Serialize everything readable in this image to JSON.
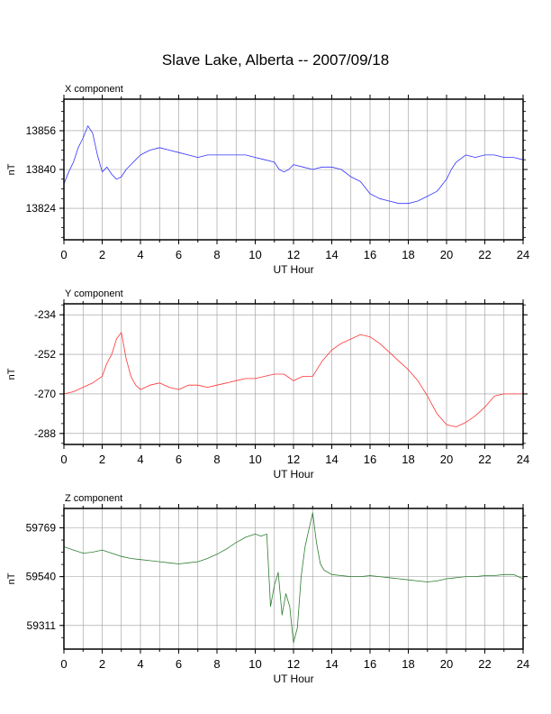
{
  "title": "Slave Lake, Alberta -- 2007/09/18",
  "colors": {
    "x": "#3333ff",
    "y": "#ff3333",
    "z": "#2e7d32",
    "grid": "#999999"
  },
  "chart_data": [
    {
      "type": "line",
      "title": "X component",
      "xlabel": "UT Hour",
      "ylabel": "nT",
      "xlim": [
        0,
        24
      ],
      "ylim": [
        13811,
        13869
      ],
      "xticks": [
        "0",
        "2",
        "4",
        "6",
        "8",
        "10",
        "12",
        "14",
        "16",
        "18",
        "20",
        "22",
        "24"
      ],
      "yticks": [
        "13856",
        "13840",
        "13824"
      ],
      "ytick_values": [
        13856,
        13840,
        13824
      ],
      "grid": true,
      "series": [
        {
          "x": [
            0,
            0.25,
            0.5,
            0.75,
            1,
            1.25,
            1.5,
            1.75,
            2,
            2.25,
            2.5,
            2.75,
            3,
            3.25,
            3.5,
            3.75,
            4,
            4.5,
            5,
            5.5,
            6,
            6.5,
            7,
            7.5,
            8,
            8.5,
            9,
            9.5,
            10,
            10.5,
            11,
            11.25,
            11.5,
            11.75,
            12,
            12.5,
            13,
            13.5,
            14,
            14.5,
            15,
            15.5,
            16,
            16.5,
            17,
            17.5,
            18,
            18.5,
            19,
            19.5,
            20,
            20.25,
            20.5,
            21,
            21.5,
            22,
            22.5,
            23,
            23.5,
            24
          ],
          "values": [
            13834,
            13839,
            13843,
            13849,
            13853,
            13858,
            13855,
            13846,
            13839,
            13841,
            13838,
            13836,
            13837,
            13840,
            13842,
            13844,
            13846,
            13848,
            13849,
            13848,
            13847,
            13846,
            13845,
            13846,
            13846,
            13846,
            13846,
            13846,
            13845,
            13844,
            13843,
            13840,
            13839,
            13840,
            13842,
            13841,
            13840,
            13841,
            13841,
            13840,
            13837,
            13835,
            13830,
            13828,
            13827,
            13826,
            13826,
            13827,
            13829,
            13831,
            13836,
            13840,
            13843,
            13846,
            13845,
            13846,
            13846,
            13845,
            13845,
            13844
          ]
        }
      ]
    },
    {
      "type": "line",
      "title": "Y component",
      "xlabel": "UT Hour",
      "ylabel": "nT",
      "xlim": [
        0,
        24
      ],
      "ylim": [
        -293,
        -229
      ],
      "xticks": [
        "0",
        "2",
        "4",
        "6",
        "8",
        "10",
        "12",
        "14",
        "16",
        "18",
        "20",
        "22",
        "24"
      ],
      "yticks": [
        "-234",
        "-252",
        "-270",
        "-288"
      ],
      "ytick_values": [
        -234,
        -252,
        -270,
        -288
      ],
      "grid": true,
      "series": [
        {
          "x": [
            0,
            0.5,
            1,
            1.5,
            2,
            2.25,
            2.5,
            2.75,
            3,
            3.25,
            3.5,
            3.75,
            4,
            4.5,
            5,
            5.5,
            6,
            6.5,
            7,
            7.5,
            8,
            8.5,
            9,
            9.5,
            10,
            10.5,
            11,
            11.5,
            12,
            12.5,
            13,
            13.5,
            14,
            14.5,
            15,
            15.5,
            16,
            16.5,
            17,
            17.5,
            18,
            18.5,
            19,
            19.5,
            20,
            20.5,
            21,
            21.5,
            22,
            22.5,
            23,
            23.5,
            24
          ],
          "values": [
            -270,
            -269,
            -267,
            -265,
            -262,
            -256,
            -252,
            -245,
            -242,
            -254,
            -262,
            -266,
            -268,
            -266,
            -265,
            -267,
            -268,
            -266,
            -266,
            -267,
            -266,
            -265,
            -264,
            -263,
            -263,
            -262,
            -261,
            -261,
            -264,
            -262,
            -262,
            -255,
            -250,
            -247,
            -245,
            -243,
            -244,
            -247,
            -251,
            -255,
            -259,
            -264,
            -271,
            -279,
            -284,
            -285,
            -283,
            -280,
            -276,
            -271,
            -270,
            -270,
            -270
          ]
        }
      ]
    },
    {
      "type": "line",
      "title": "Z component",
      "xlabel": "UT Hour",
      "ylabel": "nT",
      "xlim": [
        0,
        24
      ],
      "ylim": [
        59200,
        59860
      ],
      "xticks": [
        "0",
        "2",
        "4",
        "6",
        "8",
        "10",
        "12",
        "14",
        "16",
        "18",
        "20",
        "22",
        "24"
      ],
      "yticks": [
        "59769",
        "59540",
        "59311"
      ],
      "ytick_values": [
        59769,
        59540,
        59311
      ],
      "grid": true,
      "series": [
        {
          "x": [
            0,
            0.5,
            1,
            1.5,
            2,
            2.5,
            3,
            3.5,
            4,
            4.5,
            5,
            5.5,
            6,
            6.5,
            7,
            7.5,
            8,
            8.5,
            9,
            9.5,
            10,
            10.3,
            10.6,
            10.8,
            11,
            11.2,
            11.4,
            11.6,
            11.8,
            12,
            12.2,
            12.4,
            12.6,
            12.8,
            13,
            13.2,
            13.4,
            13.6,
            14,
            14.5,
            15,
            15.5,
            16,
            16.5,
            17,
            17.5,
            18,
            18.5,
            19,
            19.5,
            20,
            20.5,
            21,
            21.5,
            22,
            22.5,
            23,
            23.5,
            24
          ],
          "values": [
            59680,
            59665,
            59650,
            59655,
            59665,
            59650,
            59635,
            59625,
            59620,
            59615,
            59610,
            59605,
            59600,
            59605,
            59610,
            59625,
            59645,
            59670,
            59700,
            59725,
            59740,
            59730,
            59740,
            59400,
            59500,
            59560,
            59360,
            59460,
            59400,
            59230,
            59300,
            59540,
            59680,
            59760,
            59840,
            59700,
            59600,
            59570,
            59550,
            59545,
            59540,
            59540,
            59545,
            59540,
            59535,
            59530,
            59525,
            59520,
            59515,
            59520,
            59530,
            59535,
            59540,
            59540,
            59545,
            59545,
            59550,
            59550,
            59530
          ]
        }
      ]
    }
  ]
}
